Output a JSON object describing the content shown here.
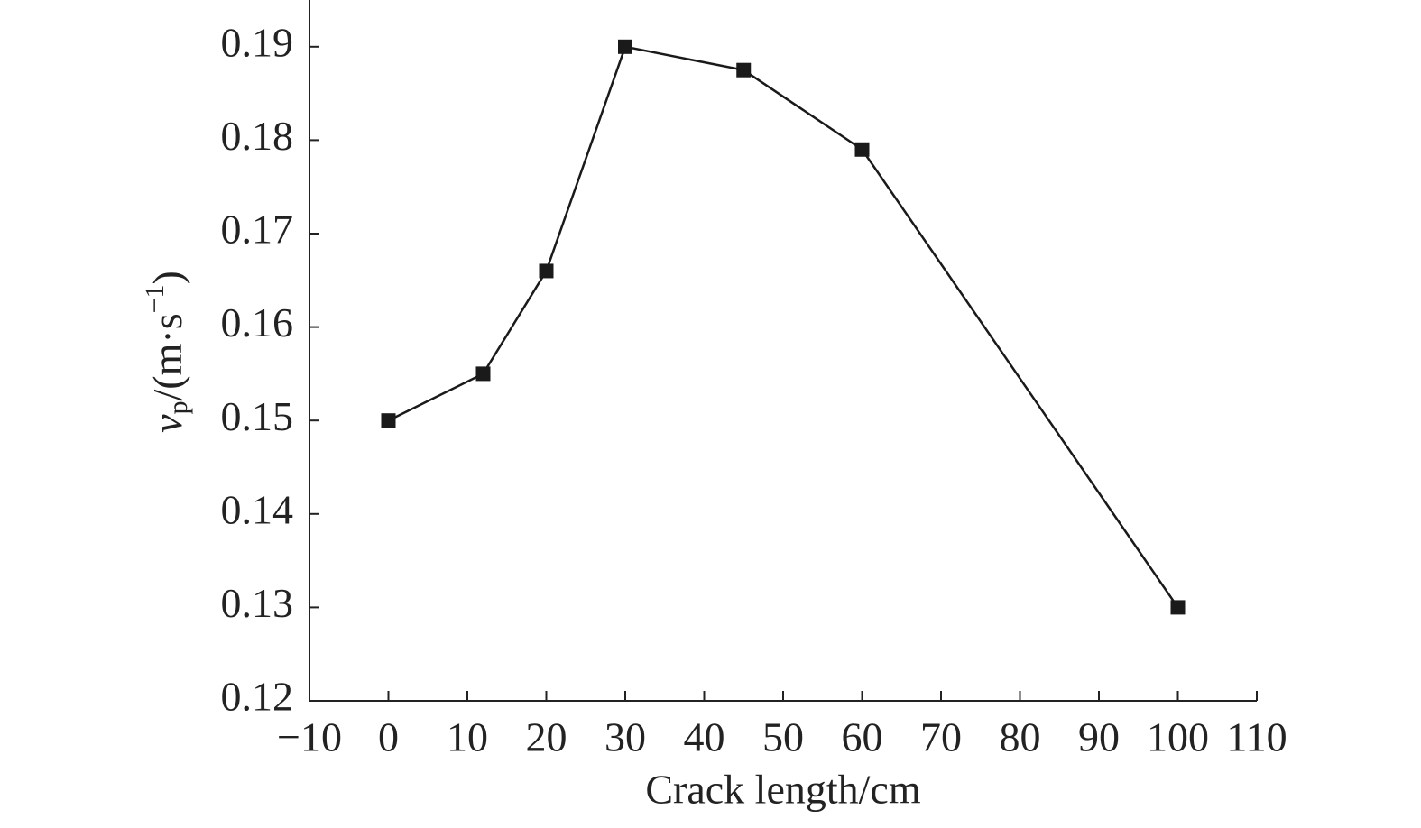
{
  "chart_data": {
    "type": "line",
    "x_label": "Crack length/cm",
    "y_label": {
      "symbol": "v",
      "subscript": "p",
      "unit": "/(m·s",
      "superscript": "−1",
      "close": ")"
    },
    "x": [
      0,
      12,
      20,
      30,
      45,
      60,
      100
    ],
    "series": [
      {
        "color": "#1a1a1a",
        "values": [
          0.15,
          0.155,
          0.166,
          0.19,
          0.1875,
          0.179,
          0.13
        ]
      }
    ],
    "xlim": [
      -10,
      110
    ],
    "xticks": [
      {
        "value": -10,
        "label": "−10"
      },
      0,
      10,
      20,
      30,
      40,
      50,
      60,
      70,
      80,
      90,
      100,
      110
    ],
    "ylim": [
      0.12,
      0.195
    ],
    "yticks": [
      0.12,
      0.13,
      0.14,
      0.15,
      0.16,
      0.17,
      0.18,
      0.19
    ],
    "marker": "square"
  }
}
